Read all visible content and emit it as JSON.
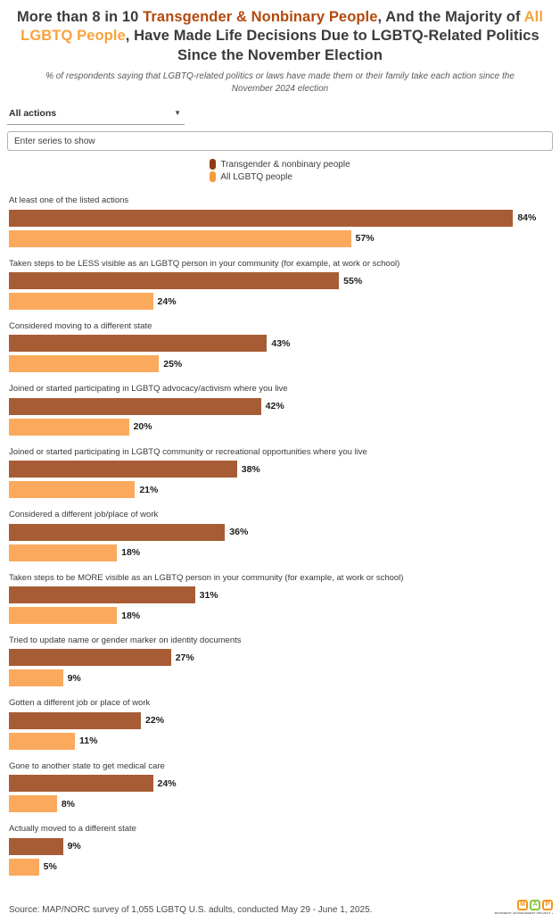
{
  "colors": {
    "accent-dark": "#b34a0e",
    "accent-orange": "#f9a23c"
  },
  "title": {
    "prefix": "More than 8 in 10 ",
    "accent1": "Transgender & Nonbinary People",
    "mid": ", And the Majority of ",
    "accent2": "All LGBTQ People",
    "suffix": ", Have Made Life Decisions Due to LGBTQ-Related Politics Since the November Election"
  },
  "subtitle": "% of respondents saying that LGBTQ-related politics or laws have made them or their family take each action since the November 2024 election",
  "controls": {
    "actions_dropdown_value": "All actions",
    "dropdown_caret": "▼",
    "series_input_placeholder": "Enter series to show"
  },
  "legend": [
    {
      "label": "Transgender & nonbinary people",
      "color": "#8e3b10"
    },
    {
      "label": "All LGBTQ people",
      "color": "#f89b3b"
    }
  ],
  "chart_data": {
    "type": "bar",
    "orientation": "horizontal",
    "unit": "%",
    "value_labels": true,
    "grid": false,
    "xlim": [
      0,
      90
    ],
    "categories": [
      "At least one of the listed actions",
      "Taken steps to be LESS visible as an LGBTQ person in your community (for example, at work or school)",
      "Considered moving to a different state",
      "Joined or started participating in LGBTQ advocacy/activism where you live",
      "Joined or started participating in LGBTQ community or recreational opportunities where you live",
      "Considered a different job/place of work",
      "Taken steps to be MORE visible as an LGBTQ person in your community (for example, at work or school)",
      "Tried to update name or gender marker on identity documents",
      "Gotten a different job or place of work",
      "Gone to another state to get medical care",
      "Actually moved to a different state"
    ],
    "series": [
      {
        "name": "Transgender & nonbinary people",
        "color": "#a85c35",
        "values": [
          84,
          55,
          43,
          42,
          38,
          36,
          31,
          27,
          22,
          24,
          9
        ]
      },
      {
        "name": "All LGBTQ people",
        "color": "#fba95c",
        "values": [
          57,
          24,
          25,
          20,
          21,
          18,
          18,
          9,
          11,
          8,
          5
        ]
      }
    ]
  },
  "footer": {
    "source": "Source: MAP/NORC survey of 1,055 LGBTQ U.S. adults, conducted May 29 - June 1, 2025.",
    "logo": {
      "letters": [
        "M",
        "A",
        "P"
      ],
      "tagline": "MOVEMENT ADVANCEMENT PROJECT »"
    }
  }
}
